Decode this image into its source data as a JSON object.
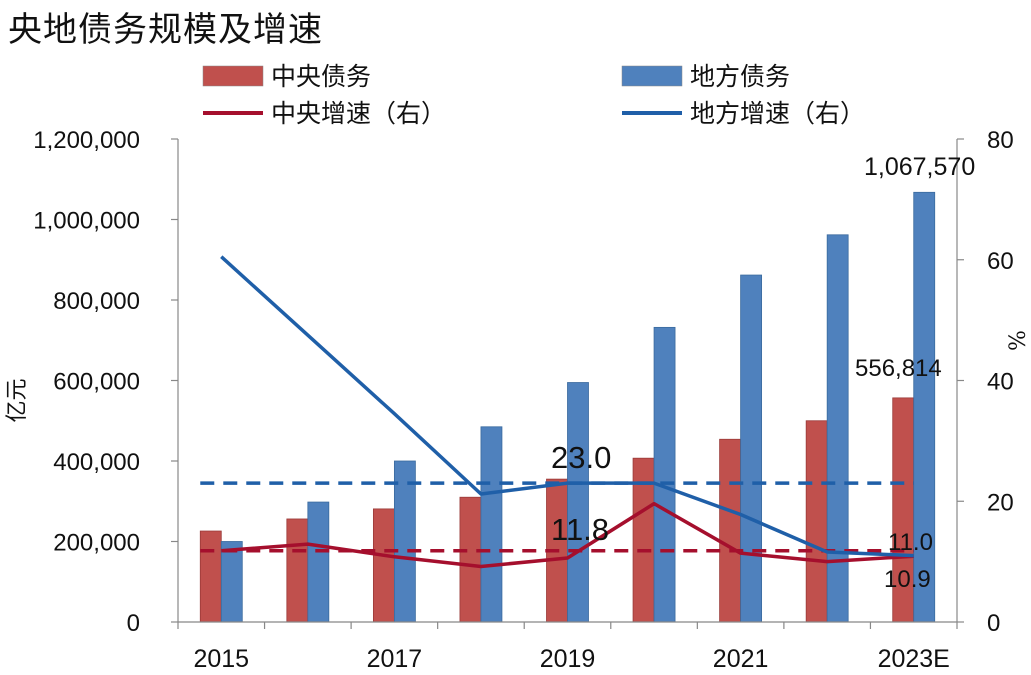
{
  "title": "央地债务规模及增速",
  "chart_data": {
    "type": "bar",
    "categories": [
      "2015",
      "2016",
      "2017",
      "2018",
      "2019",
      "2020",
      "2021",
      "2022",
      "2023E"
    ],
    "x_tick_labels": [
      "2015",
      "2017",
      "2019",
      "2021",
      "2023E"
    ],
    "bar_series": [
      {
        "name": "中央债务",
        "color": "#C0504D",
        "values": [
          226000,
          256000,
          281000,
          310000,
          355000,
          407000,
          454000,
          500000,
          556814
        ]
      },
      {
        "name": "地方债务",
        "color": "#4F81BD",
        "values": [
          200000,
          298000,
          400000,
          485000,
          595000,
          732000,
          862000,
          962000,
          1067570
        ]
      }
    ],
    "line_series": [
      {
        "name": "中央增速（右）",
        "color": "#A50F2D",
        "values": [
          11.8,
          12.9,
          10.8,
          9.2,
          10.6,
          19.6,
          11.4,
          10.0,
          10.9
        ]
      },
      {
        "name": "地方增速（右）",
        "color": "#1F5FA8",
        "values": [
          60.5,
          47.5,
          34.5,
          21.2,
          23.0,
          23.0,
          17.8,
          11.6,
          11.0
        ]
      }
    ],
    "avg_lines": [
      {
        "series": "地方增速（右）",
        "value": 23.0,
        "color": "#1F5FA8"
      },
      {
        "series": "中央增速（右）",
        "value": 11.8,
        "color": "#A50F2D"
      }
    ],
    "ylabel_left": "亿元",
    "ylabel_right": "%",
    "ylim_left": [
      0,
      1200000
    ],
    "ylim_right": [
      0,
      80
    ],
    "yticks_left": [
      "0",
      "200,000",
      "400,000",
      "600,000",
      "800,000",
      "1,000,000",
      "1,200,000"
    ],
    "yticks_right": [
      "0",
      "20",
      "40",
      "60",
      "80"
    ],
    "annotations": [
      {
        "text": "1,067,570",
        "anchor": "bar",
        "series": "地方债务",
        "index": 8
      },
      {
        "text": "556,814",
        "anchor": "bar",
        "series": "中央债务",
        "index": 8
      },
      {
        "text": "23.0",
        "anchor": "avg",
        "value": 23.0
      },
      {
        "text": "11.8",
        "anchor": "avg",
        "value": 11.8
      },
      {
        "text": "11.0",
        "anchor": "line",
        "series": "地方增速（右）",
        "index": 8
      },
      {
        "text": "10.9",
        "anchor": "line",
        "series": "中央增速（右）",
        "index": 8
      }
    ],
    "legend_position": "top",
    "grid": false
  }
}
